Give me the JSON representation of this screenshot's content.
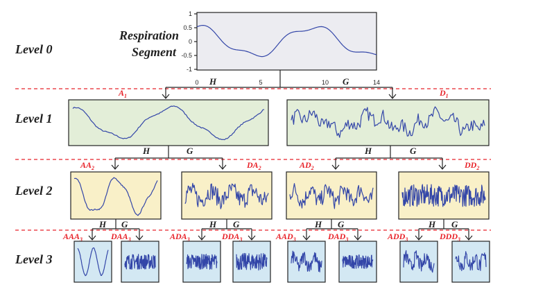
{
  "levels": [
    "Level 0",
    "Level 1",
    "Level 2",
    "Level 3"
  ],
  "root": {
    "title_line1": "Respiration",
    "title_line2": "Segment",
    "y_ticks": [
      "1",
      "0.5",
      "0",
      "-0.5",
      "-1"
    ],
    "x_ticks": [
      "0",
      "5",
      "10",
      "14"
    ]
  },
  "filters": {
    "low": "H",
    "high": "G"
  },
  "level1": [
    "A",
    "D"
  ],
  "level1_sub": "1",
  "level2": [
    "AA",
    "DA",
    "AD",
    "DD"
  ],
  "level2_sub": "2",
  "level3": [
    "AAA",
    "DAA",
    "ADA",
    "DDA",
    "AAD",
    "DAD",
    "ADD",
    "DDD"
  ],
  "level3_sub": "3",
  "colors": {
    "level0_fill": "#ececf1",
    "level1_fill": "#e3eed8",
    "level2_fill": "#f9f0c8",
    "level3_fill": "#d3e8f3",
    "signal": "#3346a8",
    "separator": "#e8232a",
    "label": "#e8232a"
  }
}
